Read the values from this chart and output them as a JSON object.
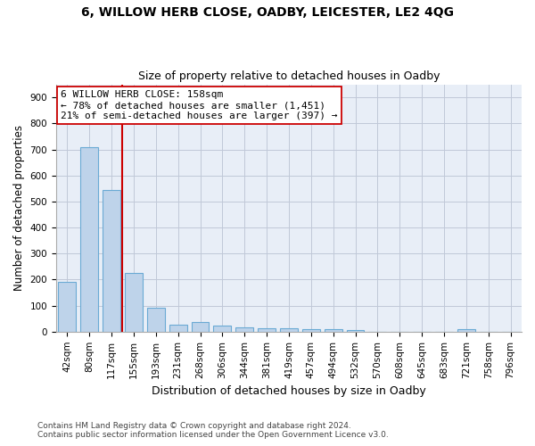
{
  "title1": "6, WILLOW HERB CLOSE, OADBY, LEICESTER, LE2 4QG",
  "title2": "Size of property relative to detached houses in Oadby",
  "xlabel": "Distribution of detached houses by size in Oadby",
  "ylabel": "Number of detached properties",
  "footer1": "Contains HM Land Registry data © Crown copyright and database right 2024.",
  "footer2": "Contains public sector information licensed under the Open Government Licence v3.0.",
  "categories": [
    "42sqm",
    "80sqm",
    "117sqm",
    "155sqm",
    "193sqm",
    "231sqm",
    "268sqm",
    "306sqm",
    "344sqm",
    "381sqm",
    "419sqm",
    "457sqm",
    "494sqm",
    "532sqm",
    "570sqm",
    "608sqm",
    "645sqm",
    "683sqm",
    "721sqm",
    "758sqm",
    "796sqm"
  ],
  "values": [
    190,
    707,
    543,
    225,
    92,
    28,
    37,
    25,
    15,
    12,
    12,
    10,
    8,
    6,
    0,
    0,
    0,
    0,
    10,
    0,
    0
  ],
  "bar_color": "#bed3ea",
  "bar_edge_color": "#6aaad4",
  "vline_x_data": 2.5,
  "vline_color": "#cc0000",
  "annotation_line1": "6 WILLOW HERB CLOSE: 158sqm",
  "annotation_line2": "← 78% of detached houses are smaller (1,451)",
  "annotation_line3": "21% of semi-detached houses are larger (397) →",
  "annotation_box_color": "#ffffff",
  "annotation_box_edge": "#cc0000",
  "ylim": [
    0,
    950
  ],
  "yticks": [
    0,
    100,
    200,
    300,
    400,
    500,
    600,
    700,
    800,
    900
  ],
  "background_color": "#ffffff",
  "plot_bg_color": "#e8eef7",
  "grid_color": "#c0c8d8",
  "title1_fontsize": 10,
  "title2_fontsize": 9,
  "xlabel_fontsize": 9,
  "ylabel_fontsize": 8.5,
  "tick_fontsize": 7.5,
  "annotation_fontsize": 8,
  "footer_fontsize": 6.5
}
